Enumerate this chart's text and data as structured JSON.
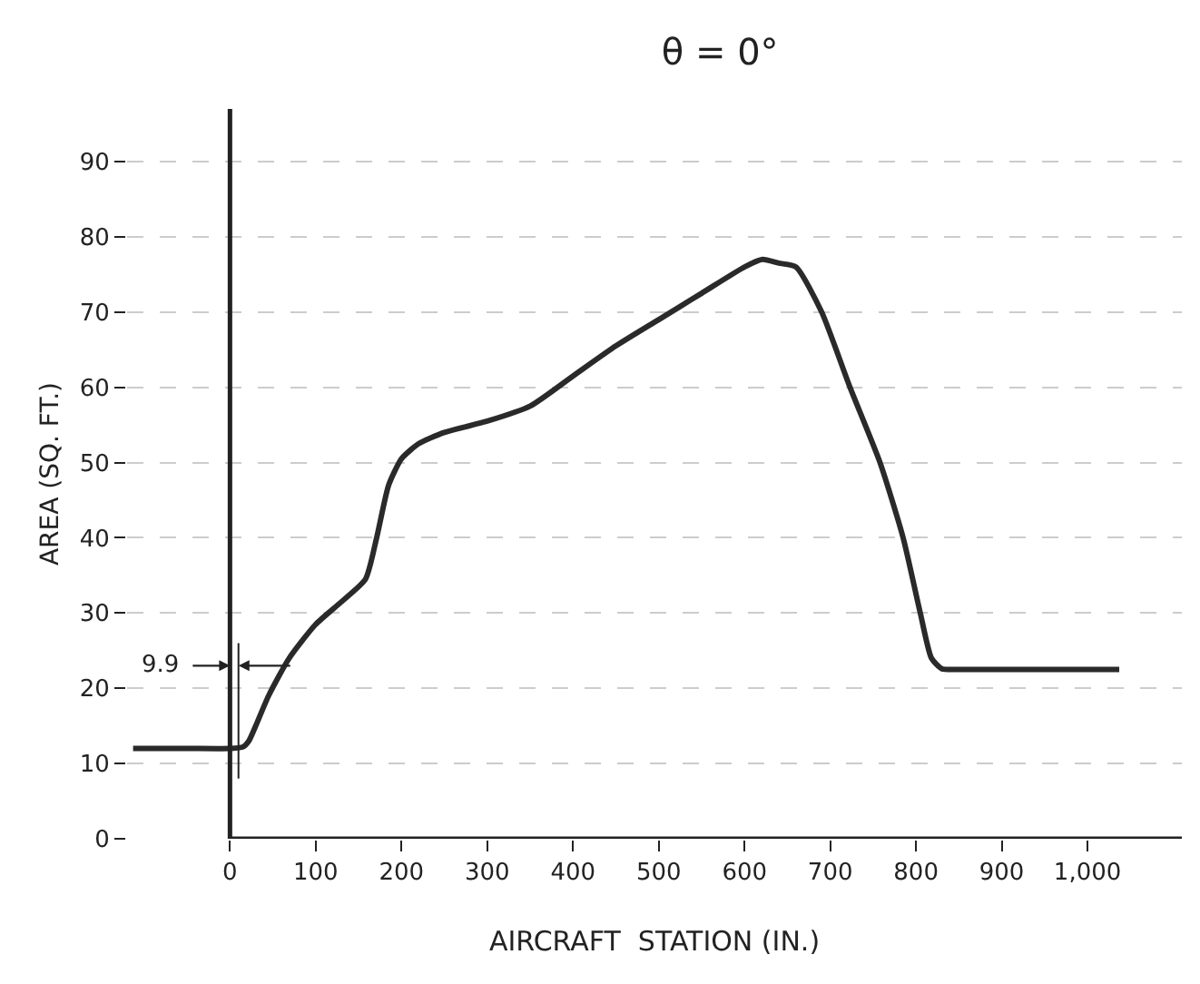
{
  "chart_data": {
    "type": "line",
    "title": "θ = 0°",
    "xlabel": "AIRCRAFT  STATION (IN.)",
    "ylabel": "AREA (SQ. FT.)",
    "x": [
      -113,
      -50,
      0,
      15,
      22,
      30,
      45,
      69,
      100,
      130,
      158,
      171,
      185,
      200,
      220,
      250,
      300,
      350,
      400,
      450,
      500,
      550,
      600,
      621,
      640,
      660,
      690,
      723,
      758,
      785,
      805,
      818,
      830,
      850,
      900,
      1000,
      1037
    ],
    "series": [
      {
        "color": "#2a2a2a",
        "values": [
          12,
          12,
          12,
          12.2,
          13,
          15,
          19,
          24,
          28.5,
          31.5,
          34.5,
          40,
          47,
          50.5,
          52.5,
          54,
          55.5,
          57.5,
          61.5,
          65.5,
          69,
          72.5,
          76,
          77,
          76.5,
          76,
          70,
          60,
          50,
          40,
          30,
          24,
          22.6,
          22.5,
          22.5,
          22.5,
          22.5
        ]
      }
    ],
    "ref_lines": [
      {
        "axis": "x",
        "value": 9.9,
        "label": "9.9",
        "color": "#222222",
        "line_style": "solid"
      }
    ],
    "xlim": [
      -120,
      1110
    ],
    "ylim": [
      0,
      97
    ],
    "xticks": [
      0,
      100,
      200,
      300,
      400,
      500,
      600,
      700,
      800,
      900,
      {
        "value": 1000,
        "label": "1,000"
      }
    ],
    "yticks": [
      0,
      10,
      20,
      30,
      40,
      50,
      60,
      70,
      80,
      90
    ],
    "grid": "y",
    "marker": "none",
    "line_style": "solid"
  }
}
